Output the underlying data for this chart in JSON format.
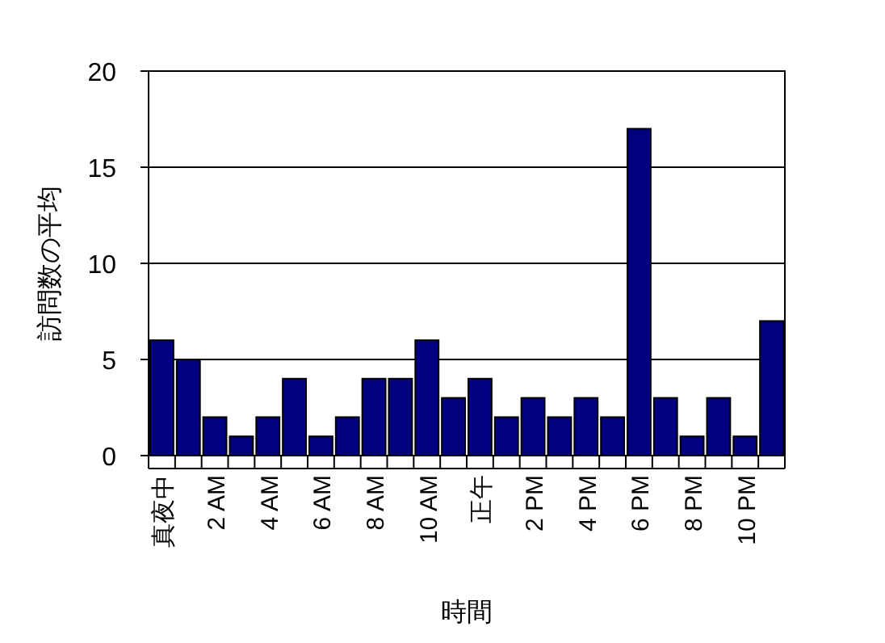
{
  "chart_data": {
    "type": "bar",
    "xlabel": "時間",
    "ylabel": "訪問数の平均",
    "categories": [
      "真夜中",
      null,
      "2 AM",
      null,
      "4 AM",
      null,
      "6 AM",
      null,
      "8 AM",
      null,
      "10 AM",
      null,
      "正午",
      null,
      "2 PM",
      null,
      "4 PM",
      null,
      "6 PM",
      null,
      "8 PM",
      null,
      "10 PM",
      null
    ],
    "values": [
      6,
      5,
      2,
      1,
      2,
      4,
      1,
      2,
      4,
      4,
      6,
      3,
      4,
      2,
      3,
      2,
      3,
      2,
      17,
      3,
      1,
      3,
      1,
      7
    ],
    "color": "#000080",
    "ylim": [
      0,
      20
    ],
    "yticks": [
      0,
      5,
      10,
      15,
      20
    ],
    "grid": "y"
  }
}
